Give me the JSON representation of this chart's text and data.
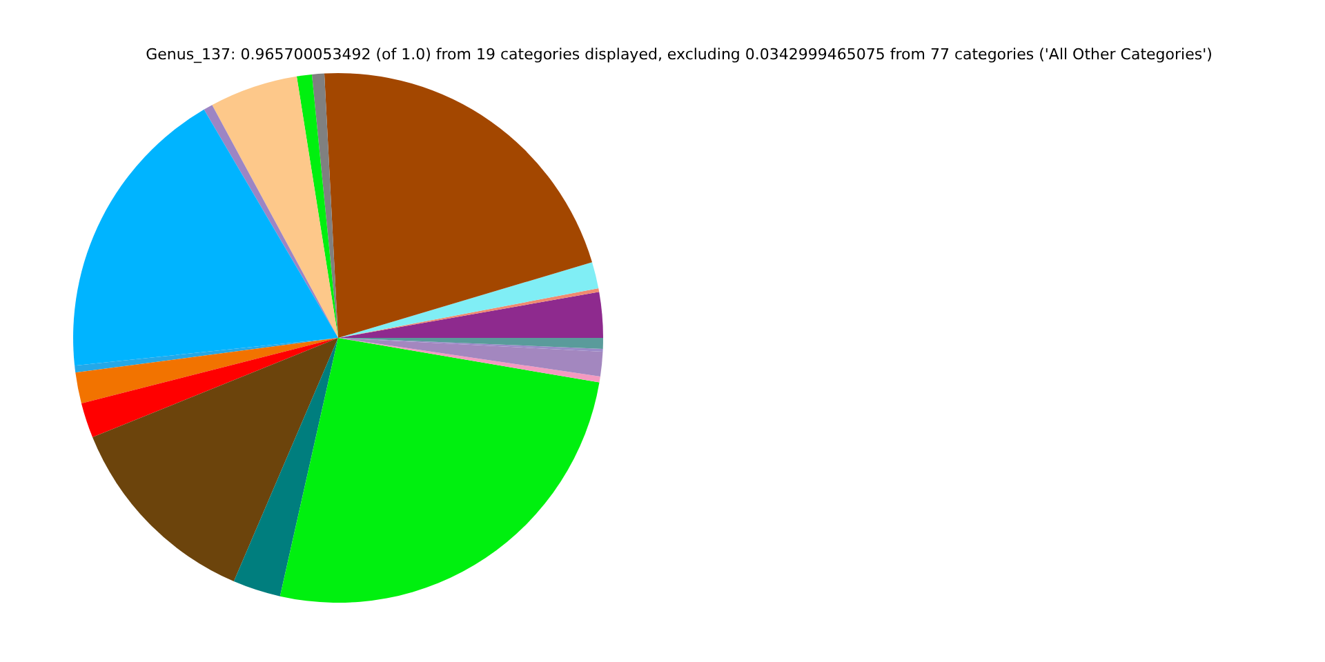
{
  "chart_data": {
    "type": "pie",
    "title": "Genus_137: 0.965700053492 (of 1.0) from 19 categories displayed, excluding 0.0342999465075 from 77 categories ('All Other Categories')",
    "categories": [
      null,
      null,
      null,
      null,
      null,
      null,
      null,
      null,
      null,
      null,
      null,
      null,
      null,
      null,
      null,
      null,
      null,
      null,
      null
    ],
    "values": [
      2.78,
      0.22,
      1.61,
      21.22,
      0.75,
      0.92,
      5.39,
      0.56,
      18.22,
      0.42,
      1.89,
      2.14,
      12.44,
      2.92,
      25.83,
      0.36,
      1.5,
      0.17,
      0.66
    ],
    "colors": [
      "#8e2a8e",
      "#f08a70",
      "#80eef5",
      "#a34700",
      "#808080",
      "#00f00f",
      "#fdc88a",
      "#9c85c4",
      "#00b4ff",
      "#24a8e8",
      "#f27300",
      "#ff0000",
      "#6c440c",
      "#007e7e",
      "#00f00f",
      "#f49ac0",
      "#a387bf",
      "#9b8ac9",
      "#5a9b9b"
    ],
    "legend": false
  }
}
